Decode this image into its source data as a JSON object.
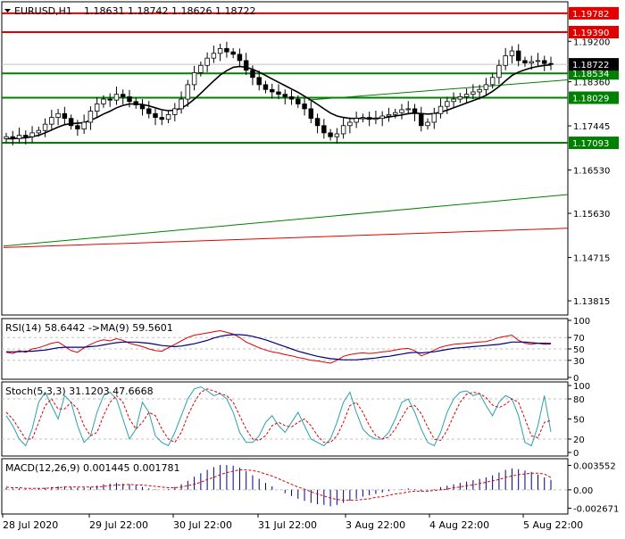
{
  "header": {
    "symbol": "EURUSD,H1",
    "open": "1.18631",
    "high": "1.18742",
    "low": "1.18626",
    "close": "1.18722"
  },
  "colors": {
    "background": "#ffffff",
    "frame": "#000000",
    "resistance": "#e00000",
    "support": "#008000",
    "price_tag_red": "#e00000",
    "price_tag_green": "#008000",
    "current_price_tag": "#000000",
    "rsi_line": "#e00000",
    "rsi_ma": "#000080",
    "stoch_main": "#2aa0b0",
    "stoch_signal": "#e00000",
    "macd_histogram": "#000080",
    "macd_signal": "#e00000",
    "moving_average": "#000000",
    "trendline_green": "#008000",
    "trendline_red": "#e00000"
  },
  "chart_data": [
    {
      "type": "candlestick",
      "panel": "price",
      "ylim": [
        1.1352,
        1.2002
      ],
      "y_ticks": [
        "1.19200",
        "1.18360",
        "1.17445",
        "1.16530",
        "1.15630",
        "1.14715",
        "1.13815"
      ],
      "x_ticks": [
        "28 Jul 2020",
        "29 Jul 22:00",
        "30 Jul 22:00",
        "31 Jul 22:00",
        "3 Aug 22:00",
        "4 Aug 22:00",
        "5 Aug 22:00"
      ],
      "current_price": "1.18722",
      "horizontal_levels": [
        {
          "value": 1.19782,
          "label": "1.19782",
          "kind": "resistance"
        },
        {
          "value": 1.1939,
          "label": "1.19390",
          "kind": "resistance"
        },
        {
          "value": 1.18534,
          "label": "1.18534",
          "kind": "support"
        },
        {
          "value": 1.18029,
          "label": "1.18029",
          "kind": "support"
        },
        {
          "value": 1.17093,
          "label": "1.17093",
          "kind": "support"
        }
      ],
      "trendlines": [
        {
          "kind": "green",
          "from": [
            0,
            1.1495
          ],
          "to": [
            1,
            1.1602
          ]
        },
        {
          "kind": "red",
          "from": [
            0,
            1.1492
          ],
          "to": [
            1,
            1.1532
          ]
        },
        {
          "kind": "green",
          "from": [
            0.54,
            1.1798
          ],
          "to": [
            1,
            1.184
          ]
        }
      ],
      "series": [
        {
          "name": "price",
          "values": [
            1.1722,
            1.1718,
            1.1725,
            1.1722,
            1.173,
            1.1735,
            1.1748,
            1.1762,
            1.177,
            1.176,
            1.1745,
            1.1738,
            1.1752,
            1.1775,
            1.179,
            1.18,
            1.1798,
            1.181,
            1.1805,
            1.1795,
            1.1788,
            1.178,
            1.177,
            1.1762,
            1.1758,
            1.1768,
            1.178,
            1.18,
            1.183,
            1.1855,
            1.187,
            1.1885,
            1.1895,
            1.1905,
            1.1898,
            1.1893,
            1.188,
            1.186,
            1.1845,
            1.183,
            1.182,
            1.1815,
            1.181,
            1.1805,
            1.18,
            1.179,
            1.178,
            1.176,
            1.1745,
            1.173,
            1.1722,
            1.1728,
            1.1745,
            1.1752,
            1.176,
            1.1762,
            1.1758,
            1.176,
            1.1765,
            1.1768,
            1.1772,
            1.1778,
            1.178,
            1.177,
            1.1745,
            1.1752,
            1.177,
            1.1785,
            1.1795,
            1.18,
            1.1805,
            1.181,
            1.1815,
            1.182,
            1.183,
            1.1845,
            1.187,
            1.189,
            1.19,
            1.188,
            1.1875,
            1.1878,
            1.188,
            1.1874,
            1.1872
          ]
        },
        {
          "name": "moving_average",
          "values": [
            1.1718,
            1.1718,
            1.1719,
            1.172,
            1.1722,
            1.1725,
            1.173,
            1.1736,
            1.1742,
            1.1747,
            1.1749,
            1.175,
            1.1751,
            1.1756,
            1.1762,
            1.1769,
            1.1775,
            1.1782,
            1.1787,
            1.179,
            1.179,
            1.1789,
            1.1786,
            1.1782,
            1.1778,
            1.1776,
            1.1777,
            1.1781,
            1.1789,
            1.18,
            1.1812,
            1.1825,
            1.1838,
            1.185,
            1.1859,
            1.1866,
            1.1868,
            1.1866,
            1.1862,
            1.1856,
            1.1849,
            1.1842,
            1.1835,
            1.1828,
            1.1821,
            1.1814,
            1.1806,
            1.1798,
            1.1789,
            1.178,
            1.1771,
            1.1765,
            1.1762,
            1.176,
            1.176,
            1.176,
            1.176,
            1.176,
            1.1761,
            1.1763,
            1.1765,
            1.1767,
            1.177,
            1.1771,
            1.177,
            1.1769,
            1.177,
            1.1773,
            1.1777,
            1.1782,
            1.1787,
            1.1792,
            1.1797,
            1.1802,
            1.1808,
            1.1816,
            1.1826,
            1.1838,
            1.1849,
            1.1856,
            1.1861,
            1.1865,
            1.1868,
            1.187,
            1.1871
          ]
        }
      ]
    },
    {
      "type": "line",
      "panel": "rsi",
      "title": "RSI(14) 58.6442  ->MA(9) 59.5601",
      "ylim": [
        0,
        100
      ],
      "y_ticks": [
        "100",
        "70",
        "50",
        "30",
        "0"
      ],
      "levels": [
        70,
        50,
        30
      ],
      "series": [
        {
          "name": "RSI(14)",
          "values": [
            44,
            42,
            47,
            44,
            50,
            52,
            56,
            60,
            62,
            55,
            47,
            44,
            52,
            58,
            63,
            66,
            64,
            68,
            65,
            60,
            57,
            54,
            50,
            47,
            46,
            52,
            58,
            64,
            70,
            74,
            76,
            78,
            80,
            82,
            79,
            76,
            70,
            62,
            57,
            52,
            48,
            45,
            43,
            40,
            38,
            35,
            33,
            30,
            29,
            27,
            25,
            30,
            37,
            40,
            42,
            43,
            42,
            43,
            45,
            46,
            48,
            50,
            51,
            47,
            38,
            42,
            48,
            53,
            56,
            58,
            59,
            60,
            61,
            62,
            63,
            66,
            70,
            72,
            74,
            65,
            60,
            58,
            60,
            58,
            58.6
          ]
        },
        {
          "name": "MA(9)",
          "values": [
            45,
            45,
            45,
            46,
            46,
            47,
            48,
            50,
            52,
            53,
            53,
            53,
            53,
            54,
            55,
            57,
            59,
            61,
            62,
            62,
            62,
            61,
            60,
            58,
            56,
            55,
            54,
            55,
            57,
            59,
            62,
            65,
            69,
            72,
            74,
            75,
            75,
            74,
            72,
            69,
            66,
            62,
            58,
            54,
            50,
            46,
            43,
            40,
            37,
            35,
            33,
            32,
            31,
            31,
            31,
            32,
            33,
            34,
            36,
            37,
            39,
            41,
            43,
            44,
            43,
            44,
            45,
            47,
            49,
            51,
            52,
            53,
            54,
            55,
            56,
            57,
            58,
            60,
            62,
            62,
            62,
            61,
            60,
            60,
            59.6
          ]
        }
      ]
    },
    {
      "type": "line",
      "panel": "stochastic",
      "title": "Stoch(5,3,3) 31.1203 47.6668",
      "ylim": [
        0,
        100
      ],
      "y_ticks": [
        "100",
        "80",
        "50",
        "20",
        "0"
      ],
      "levels": [
        80,
        20
      ],
      "series": [
        {
          "name": "main",
          "values": [
            55,
            40,
            20,
            10,
            35,
            75,
            90,
            70,
            50,
            85,
            75,
            40,
            15,
            25,
            60,
            85,
            90,
            80,
            50,
            20,
            35,
            75,
            60,
            25,
            15,
            10,
            30,
            55,
            80,
            95,
            98,
            92,
            85,
            88,
            80,
            60,
            30,
            15,
            15,
            25,
            45,
            55,
            40,
            30,
            45,
            60,
            40,
            20,
            15,
            10,
            20,
            45,
            75,
            90,
            60,
            35,
            25,
            20,
            20,
            30,
            50,
            75,
            80,
            60,
            35,
            15,
            10,
            30,
            60,
            80,
            90,
            92,
            85,
            88,
            70,
            55,
            75,
            85,
            80,
            55,
            15,
            10,
            40,
            85,
            31
          ]
        },
        {
          "name": "signal",
          "values": [
            60,
            50,
            35,
            20,
            20,
            45,
            70,
            80,
            65,
            65,
            75,
            65,
            40,
            25,
            30,
            55,
            75,
            85,
            75,
            50,
            35,
            45,
            60,
            55,
            35,
            20,
            15,
            30,
            55,
            75,
            90,
            95,
            92,
            88,
            85,
            75,
            55,
            35,
            20,
            18,
            25,
            40,
            45,
            40,
            38,
            45,
            50,
            40,
            25,
            15,
            15,
            25,
            45,
            70,
            75,
            60,
            40,
            25,
            20,
            23,
            35,
            52,
            68,
            70,
            58,
            38,
            20,
            18,
            33,
            55,
            75,
            87,
            90,
            88,
            82,
            71,
            67,
            72,
            80,
            75,
            50,
            25,
            22,
            45,
            47.7
          ]
        }
      ]
    },
    {
      "type": "bar",
      "panel": "macd",
      "title": "MACD(12,26,9) 0.001445 0.001781",
      "ylim": [
        -0.003,
        0.004
      ],
      "y_ticks": [
        "0.003552",
        "0.00",
        "-0.002671"
      ],
      "levels": [
        0
      ],
      "series": [
        {
          "name": "histogram",
          "values": [
            0.0003,
            0.0002,
            0.0002,
            0.0001,
            0.0001,
            0.0002,
            0.0003,
            0.0004,
            0.0005,
            0.0005,
            0.0004,
            0.0003,
            0.0003,
            0.0004,
            0.0006,
            0.0008,
            0.0009,
            0.001,
            0.0009,
            0.0008,
            0.0006,
            0.0004,
            0.0002,
            0.0001,
            0.0,
            0.0001,
            0.0004,
            0.0008,
            0.0013,
            0.0019,
            0.0024,
            0.0029,
            0.0033,
            0.0036,
            0.0036,
            0.0035,
            0.0032,
            0.0027,
            0.0021,
            0.0016,
            0.001,
            0.0005,
            0.0,
            -0.0005,
            -0.0009,
            -0.0013,
            -0.0016,
            -0.0019,
            -0.0021,
            -0.0022,
            -0.0024,
            -0.0022,
            -0.0019,
            -0.0016,
            -0.0013,
            -0.001,
            -0.0008,
            -0.0006,
            -0.0004,
            -0.0002,
            0.0,
            0.0001,
            0.0002,
            0.0001,
            -0.0002,
            -0.0001,
            0.0001,
            0.0004,
            0.0006,
            0.0008,
            0.001,
            0.0012,
            0.0014,
            0.0016,
            0.0018,
            0.0021,
            0.0025,
            0.0029,
            0.0031,
            0.003,
            0.0028,
            0.0026,
            0.0022,
            0.0018,
            0.001445
          ]
        },
        {
          "name": "signal",
          "values": [
            0.0004,
            0.0003,
            0.0003,
            0.0002,
            0.0002,
            0.0002,
            0.0002,
            0.0003,
            0.0003,
            0.0004,
            0.0004,
            0.0004,
            0.0004,
            0.0004,
            0.0004,
            0.0005,
            0.0006,
            0.0007,
            0.0007,
            0.0008,
            0.0007,
            0.0007,
            0.0006,
            0.0005,
            0.0004,
            0.0003,
            0.0003,
            0.0004,
            0.0006,
            0.0008,
            0.0011,
            0.0015,
            0.0018,
            0.0022,
            0.0025,
            0.0027,
            0.0029,
            0.0029,
            0.0028,
            0.0026,
            0.0023,
            0.002,
            0.0016,
            0.0012,
            0.0008,
            0.0004,
            0.0001,
            -0.0003,
            -0.0006,
            -0.0009,
            -0.0012,
            -0.0014,
            -0.0015,
            -0.0015,
            -0.0015,
            -0.0014,
            -0.0013,
            -0.0011,
            -0.001,
            -0.0008,
            -0.0006,
            -0.0005,
            -0.0003,
            -0.0002,
            -0.0002,
            -0.0002,
            -0.0001,
            0.0,
            0.0001,
            0.0003,
            0.0004,
            0.0006,
            0.0007,
            0.0009,
            0.0011,
            0.0013,
            0.0015,
            0.0018,
            0.002,
            0.0022,
            0.0023,
            0.0024,
            0.0024,
            0.0023,
            0.001781
          ]
        }
      ]
    }
  ]
}
